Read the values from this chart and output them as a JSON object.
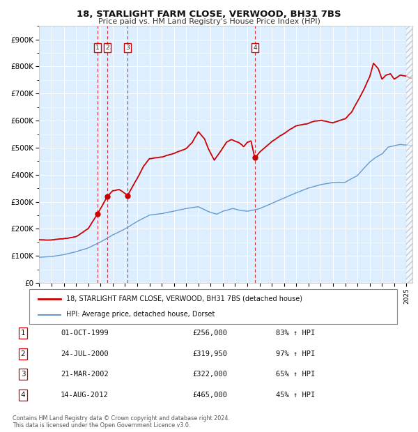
{
  "title": "18, STARLIGHT FARM CLOSE, VERWOOD, BH31 7BS",
  "subtitle": "Price paid vs. HM Land Registry's House Price Index (HPI)",
  "ylim": [
    0,
    950000
  ],
  "xlim_start": 1995.0,
  "xlim_end": 2025.5,
  "yticks": [
    0,
    100000,
    200000,
    300000,
    400000,
    500000,
    600000,
    700000,
    800000,
    900000
  ],
  "ytick_labels": [
    "£0",
    "£100K",
    "£200K",
    "£300K",
    "£400K",
    "£500K",
    "£600K",
    "£700K",
    "£800K",
    "£900K"
  ],
  "sale_color": "#cc0000",
  "hpi_color": "#6699cc",
  "bg_color": "#ddeeff",
  "grid_color": "#ffffff",
  "sale_label": "18, STARLIGHT FARM CLOSE, VERWOOD, BH31 7BS (detached house)",
  "hpi_label": "HPI: Average price, detached house, Dorset",
  "sales": [
    {
      "num": 1,
      "date_year": 1999.75,
      "price": 256000,
      "label": "01-OCT-1999",
      "price_str": "£256,000",
      "pct": "83%",
      "dir": "↑"
    },
    {
      "num": 2,
      "date_year": 2000.56,
      "price": 319950,
      "label": "24-JUL-2000",
      "price_str": "£319,950",
      "pct": "97%",
      "dir": "↑"
    },
    {
      "num": 3,
      "date_year": 2002.22,
      "price": 322000,
      "label": "21-MAR-2002",
      "price_str": "£322,000",
      "pct": "65%",
      "dir": "↑"
    },
    {
      "num": 4,
      "date_year": 2012.62,
      "price": 465000,
      "label": "14-AUG-2012",
      "price_str": "£465,000",
      "pct": "45%",
      "dir": "↑"
    }
  ],
  "footnote": "Contains HM Land Registry data © Crown copyright and database right 2024.\nThis data is licensed under the Open Government Licence v3.0.",
  "hpi_key_points": {
    "1995.0": 95000,
    "1996.0": 98000,
    "1997.0": 105000,
    "1998.0": 115000,
    "1999.0": 130000,
    "2000.0": 152000,
    "2001.0": 178000,
    "2002.0": 200000,
    "2003.0": 228000,
    "2004.0": 252000,
    "2005.0": 258000,
    "2006.0": 268000,
    "2007.0": 278000,
    "2008.0": 285000,
    "2008.8": 268000,
    "2009.5": 258000,
    "2010.0": 268000,
    "2010.8": 278000,
    "2011.5": 270000,
    "2012.0": 268000,
    "2013.0": 278000,
    "2014.0": 298000,
    "2015.0": 318000,
    "2016.0": 338000,
    "2017.0": 355000,
    "2018.0": 368000,
    "2019.0": 375000,
    "2020.0": 375000,
    "2021.0": 400000,
    "2021.5": 425000,
    "2022.0": 450000,
    "2022.5": 468000,
    "2023.0": 480000,
    "2023.5": 505000,
    "2024.0": 510000,
    "2024.5": 515000,
    "2025.3": 512000
  },
  "sale_key_points": {
    "1995.0": 160000,
    "1996.0": 158000,
    "1997.0": 162000,
    "1998.0": 170000,
    "1999.0": 200000,
    "1999.75": 256000,
    "2000.56": 319950,
    "2001.0": 340000,
    "2001.5": 345000,
    "2002.22": 322000,
    "2003.0": 385000,
    "2003.5": 430000,
    "2004.0": 460000,
    "2005.0": 465000,
    "2006.0": 478000,
    "2007.0": 498000,
    "2007.5": 520000,
    "2008.0": 560000,
    "2008.5": 535000,
    "2008.8": 500000,
    "2009.3": 458000,
    "2009.8": 490000,
    "2010.3": 525000,
    "2010.7": 535000,
    "2011.0": 530000,
    "2011.3": 525000,
    "2011.7": 510000,
    "2012.0": 525000,
    "2012.3": 530000,
    "2012.62": 465000,
    "2013.0": 490000,
    "2013.5": 510000,
    "2014.0": 530000,
    "2015.0": 560000,
    "2016.0": 590000,
    "2016.5": 595000,
    "2017.0": 600000,
    "2017.5": 608000,
    "2018.0": 610000,
    "2018.5": 605000,
    "2019.0": 600000,
    "2019.5": 608000,
    "2020.0": 615000,
    "2020.5": 640000,
    "2021.0": 680000,
    "2021.5": 720000,
    "2022.0": 770000,
    "2022.3": 820000,
    "2022.7": 800000,
    "2023.0": 760000,
    "2023.3": 775000,
    "2023.7": 780000,
    "2024.0": 760000,
    "2024.5": 775000,
    "2025.0": 770000,
    "2025.3": 762000
  }
}
